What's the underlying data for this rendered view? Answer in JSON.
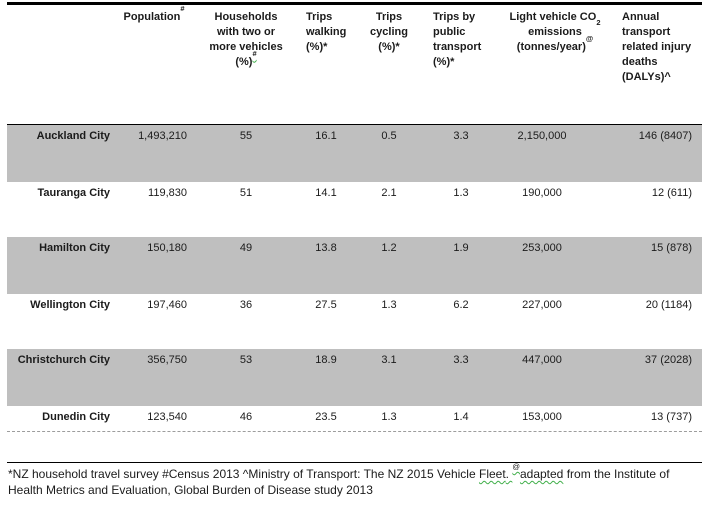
{
  "colors": {
    "row_shade": "#bfbfbf",
    "top_border": "#000000",
    "gridline_dashed": "#9d9d9d",
    "squiggle": "#3fae49"
  },
  "table": {
    "headers": [
      {
        "name": "city",
        "segments": []
      },
      {
        "name": "population",
        "segments": [
          {
            "t": "Population"
          },
          {
            "t": "#",
            "sup": true
          }
        ]
      },
      {
        "name": "households",
        "segments": [
          {
            "t": "Households"
          },
          {
            "br": true
          },
          {
            "t": "with two or"
          },
          {
            "br": true
          },
          {
            "t": "more vehicles"
          },
          {
            "br": true
          },
          {
            "t": "(%)"
          },
          {
            "t": "#",
            "sup": true,
            "squiggle": true
          }
        ]
      },
      {
        "name": "trips-walking",
        "segments": [
          {
            "t": "Trips"
          },
          {
            "br": true
          },
          {
            "t": "walking"
          },
          {
            "br": true
          },
          {
            "t": "(%)*"
          }
        ]
      },
      {
        "name": "trips-cycling",
        "segments": [
          {
            "t": "Trips"
          },
          {
            "br": true
          },
          {
            "t": "cycling"
          },
          {
            "br": true
          },
          {
            "t": "(%)*"
          }
        ]
      },
      {
        "name": "trips-public-transport",
        "segments": [
          {
            "t": "Trips by"
          },
          {
            "br": true
          },
          {
            "t": "public"
          },
          {
            "br": true
          },
          {
            "t": "transport"
          },
          {
            "br": true
          },
          {
            "t": "(%)*"
          }
        ]
      },
      {
        "name": "co2-emissions",
        "segments": [
          {
            "t": "Light vehicle CO"
          },
          {
            "t": "2",
            "sub": true
          },
          {
            "br": true
          },
          {
            "t": "emissions"
          },
          {
            "br": true
          },
          {
            "t": "(tonnes/year)"
          },
          {
            "t": "@",
            "sup": true
          }
        ]
      },
      {
        "name": "injury-deaths",
        "segments": [
          {
            "t": "Annual"
          },
          {
            "br": true
          },
          {
            "t": "transport"
          },
          {
            "br": true
          },
          {
            "t": "related injury"
          },
          {
            "br": true
          },
          {
            "t": "deaths"
          },
          {
            "br": true
          },
          {
            "t": "(DALYs)^"
          }
        ]
      }
    ],
    "rows": [
      {
        "city": "Auckland City",
        "population": "1,493,210",
        "households": "55",
        "walking": "16.1",
        "cycling": "0.5",
        "public_transport": "3.3",
        "co2": "2,150,000",
        "deaths": "146 (8407)",
        "shaded": true
      },
      {
        "city": "Tauranga City",
        "population": "119,830",
        "households": "51",
        "walking": "14.1",
        "cycling": "2.1",
        "public_transport": "1.3",
        "co2": "190,000",
        "deaths": "12 (611)",
        "shaded": false
      },
      {
        "city": "Hamilton City",
        "population": "150,180",
        "households": "49",
        "walking": "13.8",
        "cycling": "1.2",
        "public_transport": "1.9",
        "co2": "253,000",
        "deaths": "15 (878)",
        "shaded": true
      },
      {
        "city": "Wellington City",
        "population": "197,460",
        "households": "36",
        "walking": "27.5",
        "cycling": "1.3",
        "public_transport": "6.2",
        "co2": "227,000",
        "deaths": "20 (1184)",
        "shaded": false
      },
      {
        "city": "Christchurch City",
        "population": "356,750",
        "households": "53",
        "walking": "18.9",
        "cycling": "3.1",
        "public_transport": "3.3",
        "co2": "447,000",
        "deaths": "37 (2028)",
        "shaded": true
      },
      {
        "city": "Dunedin City",
        "population": "123,540",
        "households": "46",
        "walking": "23.5",
        "cycling": "1.3",
        "public_transport": "1.4",
        "co2": "153,000",
        "deaths": "13 (737)",
        "shaded": false
      }
    ]
  },
  "footnote": {
    "segments": [
      {
        "t": "*NZ household travel survey #Census 2013 ^Ministry of Transport: The NZ 2015 Vehicle "
      },
      {
        "t": "Fleet",
        "squiggle": true
      },
      {
        "t": ". ",
        "squiggle": true
      },
      {
        "t": "@",
        "sup": true,
        "squiggle": true
      },
      {
        "t": "adapted",
        "squiggle": true
      },
      {
        "t": " from the Institute of"
      },
      {
        "br": true
      },
      {
        "t": "Health Metrics and Evaluation, Global Burden of Disease study 2013"
      }
    ]
  }
}
